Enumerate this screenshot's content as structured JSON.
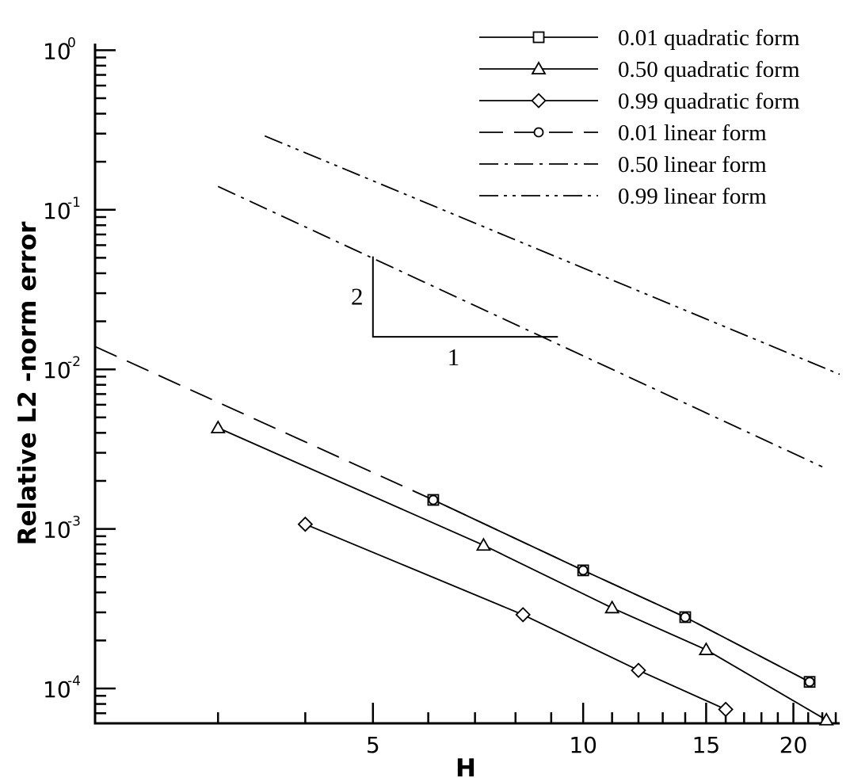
{
  "chart_data": {
    "type": "line",
    "title": "",
    "xlabel": "H",
    "ylabel": "Relative L2 -norm error",
    "xscale": "log",
    "yscale": "log",
    "xlim": [
      2.0,
      23.3
    ],
    "ylim": [
      6.05e-05,
      1.1
    ],
    "x_ticks": [
      {
        "value": 5,
        "label": "5"
      },
      {
        "value": 10,
        "label": "10"
      },
      {
        "value": 15,
        "label": "15"
      },
      {
        "value": 20,
        "label": "20"
      }
    ],
    "y_ticks": [
      {
        "value": 1,
        "base": "10",
        "exp": "0"
      },
      {
        "value": 0.1,
        "base": "10",
        "exp": "-1"
      },
      {
        "value": 0.01,
        "base": "10",
        "exp": "-2"
      },
      {
        "value": 0.001,
        "base": "10",
        "exp": "-3"
      },
      {
        "value": 0.0001,
        "base": "10",
        "exp": "-4"
      }
    ],
    "grid": false,
    "legend_position": "top-right",
    "series": [
      {
        "name": "0.01 quadratic form",
        "dash": "solid",
        "marker": "square",
        "x": [
          6.1,
          10.0,
          14.0,
          21.1
        ],
        "y": [
          0.00152,
          0.00055,
          0.00028,
          0.00011
        ]
      },
      {
        "name": "0.50 quadratic form",
        "dash": "solid",
        "marker": "triangle",
        "x": [
          3.0,
          7.2,
          11.0,
          15.0,
          22.3
        ],
        "y": [
          0.0043,
          0.00079,
          0.00032,
          0.000175,
          6.35e-05
        ]
      },
      {
        "name": "0.99 quadratic form",
        "dash": "solid",
        "marker": "diamond",
        "x": [
          4.0,
          8.2,
          12.0,
          16.0
        ],
        "y": [
          0.00107,
          0.00029,
          0.00013,
          7.4e-05
        ]
      },
      {
        "name": "0.01 linear form",
        "dash": "dash",
        "marker": "circle",
        "x": [
          2.0,
          6.1,
          10.0,
          14.0,
          21.1
        ],
        "y": [
          0.0139,
          0.00152,
          0.00055,
          0.00028,
          0.00011
        ]
      },
      {
        "name": "0.50 linear form",
        "dash": "dashdot",
        "marker": "none",
        "x": [
          3.0,
          22.0
        ],
        "y": [
          0.14,
          0.00245
        ]
      },
      {
        "name": "0.99 linear form",
        "dash": "dashdotdot",
        "marker": "none",
        "x": [
          3.5,
          23.3
        ],
        "y": [
          0.29,
          0.0093
        ]
      }
    ],
    "annotations": {
      "slope_triangle": {
        "vertical_label": "2",
        "horizontal_label": "1",
        "x0": 5.0,
        "x1": 9.2,
        "y_low": 0.016,
        "y_high": 0.051
      }
    }
  }
}
